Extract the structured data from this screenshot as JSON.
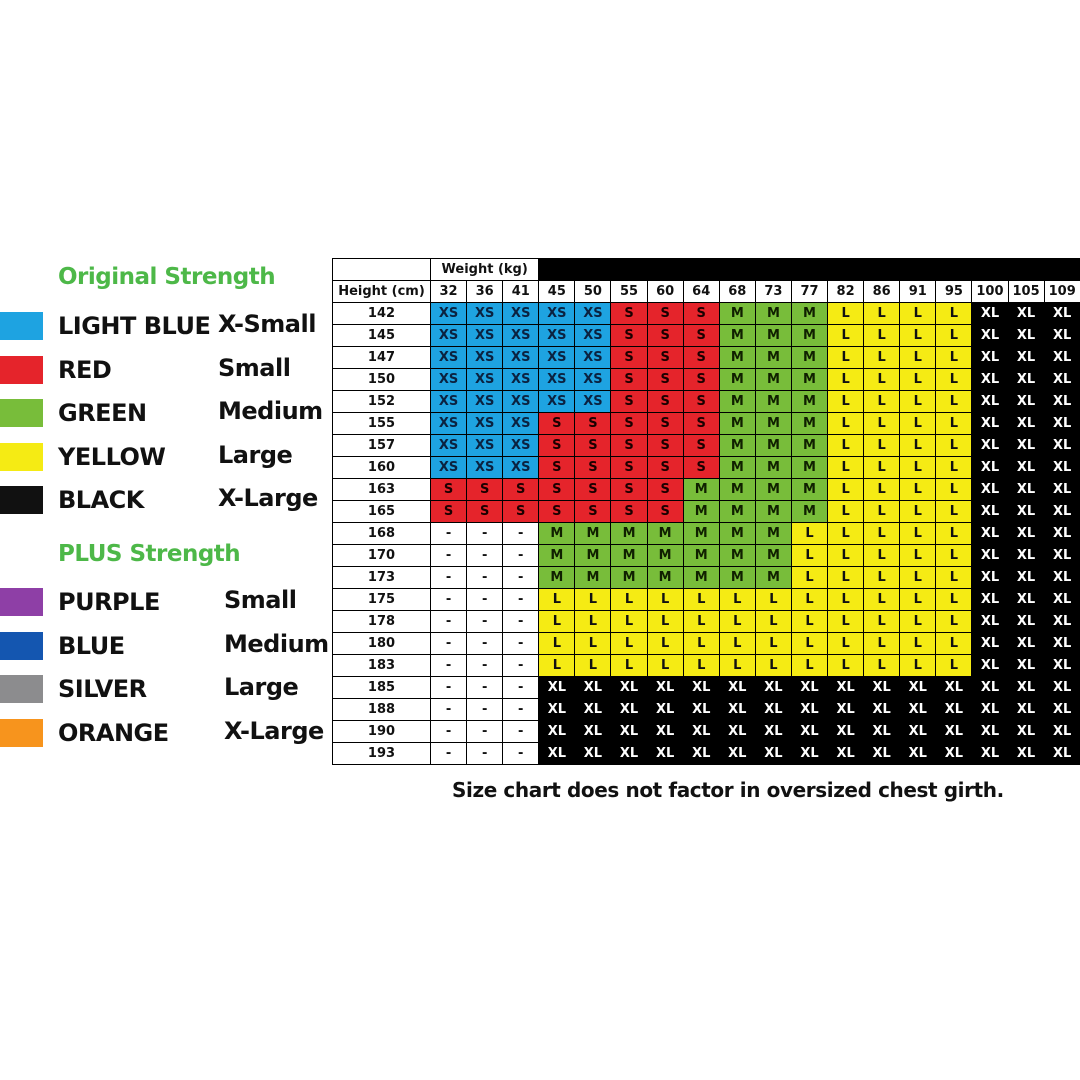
{
  "legend": {
    "original_title": "Original Strength",
    "plus_title": "PLUS Strength",
    "title_color": "#4db848",
    "original": [
      {
        "swatch": "#1ea3e1",
        "color": "LIGHT BLUE",
        "size": "X-Small"
      },
      {
        "swatch": "#e5242b",
        "color": "RED",
        "size": "Small"
      },
      {
        "swatch": "#78bd3a",
        "color": "GREEN",
        "size": "Medium"
      },
      {
        "swatch": "#f5eb14",
        "color": "YELLOW",
        "size": "Large"
      },
      {
        "swatch": "#111111",
        "color": "BLACK",
        "size": "X-Large"
      }
    ],
    "plus": [
      {
        "swatch": "#8e3fa6",
        "color": "PURPLE",
        "size": "Small"
      },
      {
        "swatch": "#1456b0",
        "color": "BLUE",
        "size": "Medium"
      },
      {
        "swatch": "#8c8c8e",
        "color": "SILVER",
        "size": "Large"
      },
      {
        "swatch": "#f7941d",
        "color": "ORANGE",
        "size": "X-Large"
      }
    ]
  },
  "chart_data": {
    "type": "table",
    "weight_label": "Weight (kg)",
    "height_label": "Height (cm)",
    "weights": [
      "32",
      "36",
      "41",
      "45",
      "50",
      "55",
      "60",
      "64",
      "68",
      "73",
      "77",
      "82",
      "86",
      "91",
      "95",
      "100",
      "105",
      "109"
    ],
    "heights": [
      "142",
      "145",
      "147",
      "150",
      "152",
      "155",
      "157",
      "160",
      "163",
      "165",
      "168",
      "170",
      "173",
      "175",
      "178",
      "180",
      "183",
      "185",
      "188",
      "190",
      "193"
    ],
    "rows": [
      [
        "XS",
        "XS",
        "XS",
        "XS",
        "XS",
        "S",
        "S",
        "S",
        "M",
        "M",
        "M",
        "L",
        "L",
        "L",
        "L",
        "XL",
        "XL",
        "XL"
      ],
      [
        "XS",
        "XS",
        "XS",
        "XS",
        "XS",
        "S",
        "S",
        "S",
        "M",
        "M",
        "M",
        "L",
        "L",
        "L",
        "L",
        "XL",
        "XL",
        "XL"
      ],
      [
        "XS",
        "XS",
        "XS",
        "XS",
        "XS",
        "S",
        "S",
        "S",
        "M",
        "M",
        "M",
        "L",
        "L",
        "L",
        "L",
        "XL",
        "XL",
        "XL"
      ],
      [
        "XS",
        "XS",
        "XS",
        "XS",
        "XS",
        "S",
        "S",
        "S",
        "M",
        "M",
        "M",
        "L",
        "L",
        "L",
        "L",
        "XL",
        "XL",
        "XL"
      ],
      [
        "XS",
        "XS",
        "XS",
        "XS",
        "XS",
        "S",
        "S",
        "S",
        "M",
        "M",
        "M",
        "L",
        "L",
        "L",
        "L",
        "XL",
        "XL",
        "XL"
      ],
      [
        "XS",
        "XS",
        "XS",
        "S",
        "S",
        "S",
        "S",
        "S",
        "M",
        "M",
        "M",
        "L",
        "L",
        "L",
        "L",
        "XL",
        "XL",
        "XL"
      ],
      [
        "XS",
        "XS",
        "XS",
        "S",
        "S",
        "S",
        "S",
        "S",
        "M",
        "M",
        "M",
        "L",
        "L",
        "L",
        "L",
        "XL",
        "XL",
        "XL"
      ],
      [
        "XS",
        "XS",
        "XS",
        "S",
        "S",
        "S",
        "S",
        "S",
        "M",
        "M",
        "M",
        "L",
        "L",
        "L",
        "L",
        "XL",
        "XL",
        "XL"
      ],
      [
        "S",
        "S",
        "S",
        "S",
        "S",
        "S",
        "S",
        "M",
        "M",
        "M",
        "M",
        "L",
        "L",
        "L",
        "L",
        "XL",
        "XL",
        "XL"
      ],
      [
        "S",
        "S",
        "S",
        "S",
        "S",
        "S",
        "S",
        "M",
        "M",
        "M",
        "M",
        "L",
        "L",
        "L",
        "L",
        "XL",
        "XL",
        "XL"
      ],
      [
        "-",
        "-",
        "-",
        "M",
        "M",
        "M",
        "M",
        "M",
        "M",
        "M",
        "L",
        "L",
        "L",
        "L",
        "L",
        "XL",
        "XL",
        "XL"
      ],
      [
        "-",
        "-",
        "-",
        "M",
        "M",
        "M",
        "M",
        "M",
        "M",
        "M",
        "L",
        "L",
        "L",
        "L",
        "L",
        "XL",
        "XL",
        "XL"
      ],
      [
        "-",
        "-",
        "-",
        "M",
        "M",
        "M",
        "M",
        "M",
        "M",
        "M",
        "L",
        "L",
        "L",
        "L",
        "L",
        "XL",
        "XL",
        "XL"
      ],
      [
        "-",
        "-",
        "-",
        "L",
        "L",
        "L",
        "L",
        "L",
        "L",
        "L",
        "L",
        "L",
        "L",
        "L",
        "L",
        "XL",
        "XL",
        "XL"
      ],
      [
        "-",
        "-",
        "-",
        "L",
        "L",
        "L",
        "L",
        "L",
        "L",
        "L",
        "L",
        "L",
        "L",
        "L",
        "L",
        "XL",
        "XL",
        "XL"
      ],
      [
        "-",
        "-",
        "-",
        "L",
        "L",
        "L",
        "L",
        "L",
        "L",
        "L",
        "L",
        "L",
        "L",
        "L",
        "L",
        "XL",
        "XL",
        "XL"
      ],
      [
        "-",
        "-",
        "-",
        "L",
        "L",
        "L",
        "L",
        "L",
        "L",
        "L",
        "L",
        "L",
        "L",
        "L",
        "L",
        "XL",
        "XL",
        "XL"
      ],
      [
        "-",
        "-",
        "-",
        "XL",
        "XL",
        "XL",
        "XL",
        "XL",
        "XL",
        "XL",
        "XL",
        "XL",
        "XL",
        "XL",
        "XL",
        "XL",
        "XL",
        "XL"
      ],
      [
        "-",
        "-",
        "-",
        "XL",
        "XL",
        "XL",
        "XL",
        "XL",
        "XL",
        "XL",
        "XL",
        "XL",
        "XL",
        "XL",
        "XL",
        "XL",
        "XL",
        "XL"
      ],
      [
        "-",
        "-",
        "-",
        "XL",
        "XL",
        "XL",
        "XL",
        "XL",
        "XL",
        "XL",
        "XL",
        "XL",
        "XL",
        "XL",
        "XL",
        "XL",
        "XL",
        "XL"
      ],
      [
        "-",
        "-",
        "-",
        "XL",
        "XL",
        "XL",
        "XL",
        "XL",
        "XL",
        "XL",
        "XL",
        "XL",
        "XL",
        "XL",
        "XL",
        "XL",
        "XL",
        "XL"
      ]
    ]
  },
  "footnote": "Size chart does not factor in oversized chest girth."
}
